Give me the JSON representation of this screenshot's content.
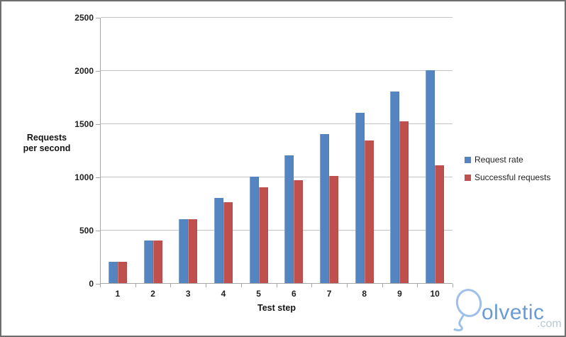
{
  "chart_data": {
    "type": "bar",
    "title": "",
    "categories": [
      "1",
      "2",
      "3",
      "4",
      "5",
      "6",
      "7",
      "8",
      "9",
      "10"
    ],
    "series": [
      {
        "name": "Request rate",
        "color": "#5585C1",
        "values": [
          200,
          400,
          600,
          800,
          1000,
          1200,
          1400,
          1600,
          1800,
          2000
        ]
      },
      {
        "name": "Successful requests",
        "color": "#C0504D",
        "values": [
          200,
          400,
          600,
          760,
          900,
          970,
          1010,
          1340,
          1520,
          1110
        ]
      }
    ],
    "xlabel": "Test step",
    "ylabel": "Requests per second",
    "ylabel_lines": [
      "Requests",
      "per second"
    ],
    "ylim": [
      0,
      2500
    ],
    "yticks": [
      0,
      500,
      1000,
      1500,
      2000,
      2500
    ],
    "grid": true,
    "legend_position": "right-middle"
  },
  "branding": {
    "logo_text": "olvetic",
    "logo_suffix": ".com",
    "logo_color": "#6B9BD3",
    "logo_suffix_color": "#BCC9D4"
  },
  "colors": {
    "gridline": "#C4C4C4",
    "axis": "#A6A6A6",
    "tick_text": "#1F1F1F",
    "frame_border": "#6E6E6E",
    "background": "#FFFFFF"
  }
}
